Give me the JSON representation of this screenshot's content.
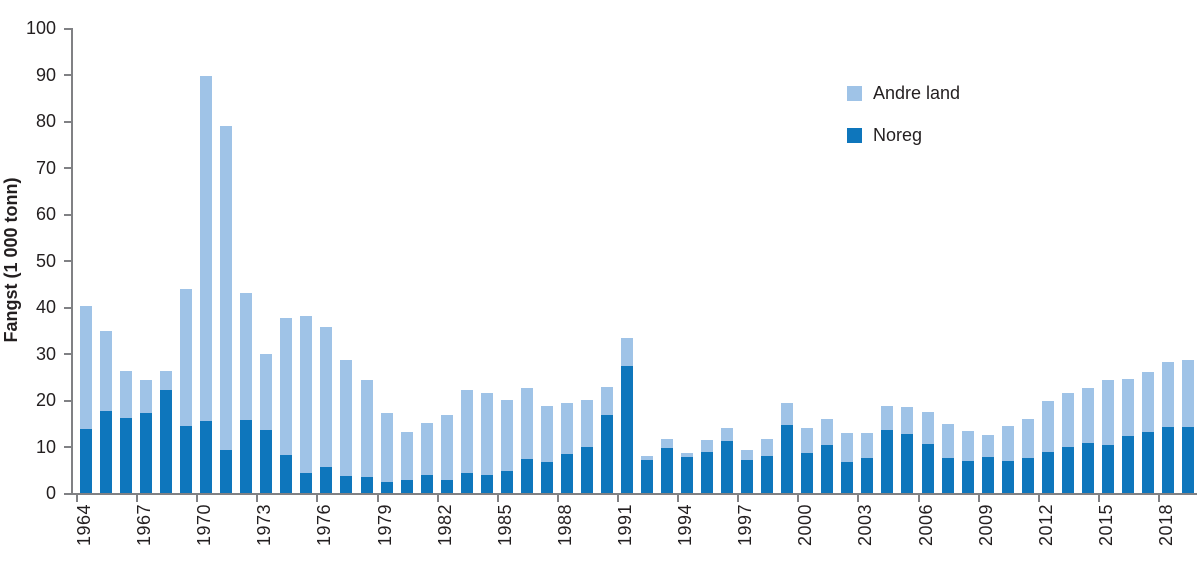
{
  "chart_data": {
    "type": "bar",
    "stacked": true,
    "title": "",
    "ylabel": "Fangst (1 000 tonn)",
    "ylim": [
      0,
      100
    ],
    "y_ticks": [
      0,
      10,
      20,
      30,
      40,
      50,
      60,
      70,
      80,
      90,
      100
    ],
    "x_tick_labels": [
      "1964",
      "1967",
      "1970",
      "1973",
      "1976",
      "1979",
      "1982",
      "1985",
      "1988",
      "1991",
      "1994",
      "1997",
      "2000",
      "2003",
      "2006",
      "2009",
      "2012",
      "2015",
      "2018"
    ],
    "categories": [
      1964,
      1965,
      1966,
      1967,
      1968,
      1969,
      1970,
      1971,
      1972,
      1973,
      1974,
      1975,
      1976,
      1977,
      1978,
      1979,
      1980,
      1981,
      1982,
      1983,
      1984,
      1985,
      1986,
      1987,
      1988,
      1989,
      1990,
      1991,
      1992,
      1993,
      1994,
      1995,
      1996,
      1997,
      1998,
      1999,
      2000,
      2001,
      2002,
      2003,
      2004,
      2005,
      2006,
      2007,
      2008,
      2009,
      2010,
      2011,
      2012,
      2013,
      2014,
      2015,
      2016,
      2017,
      2018,
      2019
    ],
    "series": [
      {
        "name": "Noreg",
        "color": "#0e76bc",
        "values": [
          13.8,
          17.6,
          16.1,
          17.3,
          22.1,
          14.5,
          15.5,
          9.3,
          15.6,
          13.6,
          8.2,
          4.3,
          5.5,
          3.6,
          3.4,
          2.3,
          2.7,
          3.9,
          2.7,
          4.4,
          3.9,
          4.8,
          7.4,
          6.6,
          8.4,
          9.9,
          16.7,
          27.4,
          7.1,
          9.7,
          7.7,
          8.9,
          11.1,
          7.0,
          7.9,
          14.6,
          8.6,
          10.4,
          6.6,
          7.6,
          13.5,
          12.7,
          10.6,
          7.6,
          6.8,
          7.8,
          6.9,
          7.6,
          8.8,
          9.8,
          10.8,
          10.3,
          12.3,
          13.2,
          14.2,
          14.1
        ]
      },
      {
        "name": "Andre land",
        "color": "#9fc3e7",
        "values": [
          26.5,
          17.2,
          10.1,
          6.9,
          4.1,
          29.3,
          74.2,
          69.7,
          27.4,
          16.4,
          29.4,
          33.8,
          30.3,
          25.0,
          21.0,
          14.8,
          10.4,
          11.2,
          14.0,
          17.7,
          17.7,
          15.1,
          15.2,
          12.2,
          10.9,
          10.1,
          6.2,
          5.9,
          0.9,
          2.0,
          0.8,
          2.4,
          2.8,
          2.2,
          3.7,
          4.7,
          5.3,
          5.6,
          6.4,
          5.4,
          5.2,
          5.8,
          6.9,
          7.3,
          6.6,
          4.6,
          7.6,
          8.3,
          10.9,
          11.8,
          11.8,
          14.0,
          12.3,
          12.8,
          14.0,
          14.4
        ]
      }
    ],
    "legend": {
      "position": "top-right",
      "order": [
        "Andre land",
        "Noreg"
      ]
    },
    "grid": false
  },
  "colors": {
    "axis": "#808184",
    "text": "#231f20",
    "background": "#ffffff"
  }
}
